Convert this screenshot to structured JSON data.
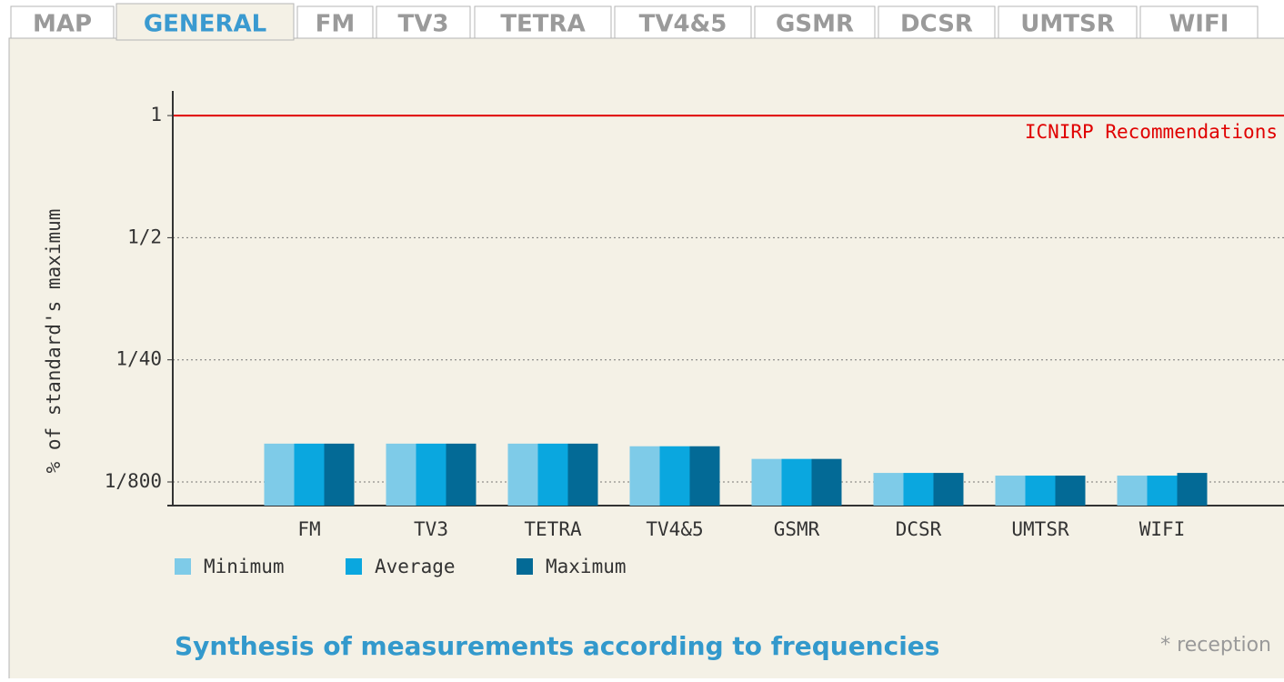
{
  "tabs": {
    "items": [
      "MAP",
      "GENERAL",
      "FM",
      "TV3",
      "TETRA",
      "TV4&5",
      "GSMR",
      "DCSR",
      "UMTSR",
      "WIFI"
    ],
    "active": 1
  },
  "chart_data": {
    "type": "bar",
    "title": "Synthesis of measurements according to frequencies",
    "note": "* reception",
    "y_label": "% of standard's maximum",
    "categories": [
      "FM",
      "TV3",
      "TETRA",
      "TV4&5",
      "GSMR",
      "DCSR",
      "UMTSR",
      "WIFI"
    ],
    "series": [
      {
        "name": "Minimum",
        "color": "#7ecbe8",
        "values": [
          0.0032,
          0.0032,
          0.0032,
          0.003,
          0.0022,
          0.00156,
          0.00146,
          0.00146
        ]
      },
      {
        "name": "Average",
        "color": "#0aa7df",
        "values": [
          0.0032,
          0.0032,
          0.0032,
          0.003,
          0.0022,
          0.00156,
          0.00146,
          0.00146
        ]
      },
      {
        "name": "Maximum",
        "color": "#036a96",
        "values": [
          0.0032,
          0.0032,
          0.0032,
          0.003,
          0.0022,
          0.00156,
          0.00146,
          0.00156
        ]
      }
    ],
    "ylim": [
      0.0007,
      1.15
    ],
    "yticks": [
      1,
      {
        "value": 0.5,
        "label": "1/2"
      },
      {
        "value": 0.025,
        "label": "1/40"
      },
      {
        "value": 0.00125,
        "label": "1/800"
      }
    ],
    "grid": true,
    "reference_line": {
      "value": 1,
      "label": "ICNIRP Recommendations",
      "color": "#e00000"
    },
    "legend": "bottom-left"
  }
}
